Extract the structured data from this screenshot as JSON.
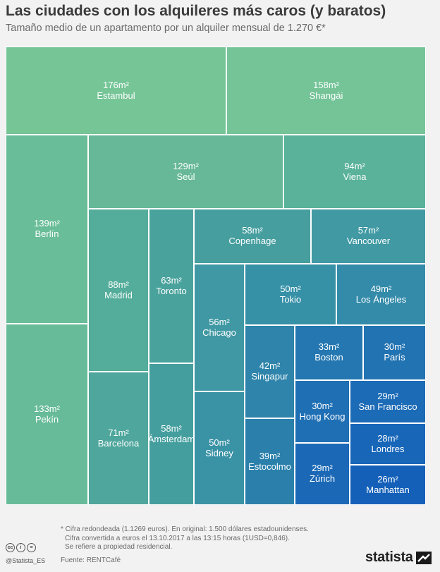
{
  "title": "Las ciudades con los alquileres más caros (y baratos)",
  "subtitle": "Tamaño medio de un apartamento por un alquiler mensual de 1.270 €*",
  "chart_data": {
    "type": "treemap",
    "title": "Las ciudades con los alquileres más caros (y baratos)",
    "subtitle": "Tamaño medio de un apartamento por un alquiler mensual de 1.270 €*",
    "unit": "m²",
    "items": [
      {
        "city": "Estambul",
        "value": 176,
        "label": "176m²",
        "color": "#76c597"
      },
      {
        "city": "Shangái",
        "value": 158,
        "label": "158m²",
        "color": "#74c498"
      },
      {
        "city": "Berlín",
        "value": 139,
        "label": "139m²",
        "color": "#69bd98"
      },
      {
        "city": "Pekín",
        "value": 133,
        "label": "133m²",
        "color": "#67bb99"
      },
      {
        "city": "Seúl",
        "value": 129,
        "label": "129m²",
        "color": "#66b898"
      },
      {
        "city": "Viena",
        "value": 94,
        "label": "94m²",
        "color": "#5ab29a"
      },
      {
        "city": "Madrid",
        "value": 88,
        "label": "88m²",
        "color": "#54ad9a"
      },
      {
        "city": "Barcelona",
        "value": 71,
        "label": "71m²",
        "color": "#4ea69c"
      },
      {
        "city": "Toronto",
        "value": 63,
        "label": "63m²",
        "color": "#4aa29c"
      },
      {
        "city": "Copenhage",
        "value": 58,
        "label": "58m²",
        "color": "#469e9f"
      },
      {
        "city": "Ámsterdam",
        "value": 58,
        "label": "58m²",
        "color": "#459e9e"
      },
      {
        "city": "Vancouver",
        "value": 57,
        "label": "57m²",
        "color": "#4099a3"
      },
      {
        "city": "Chicago",
        "value": 56,
        "label": "56m²",
        "color": "#3f98a3"
      },
      {
        "city": "Tokio",
        "value": 50,
        "label": "50m²",
        "color": "#3690a6"
      },
      {
        "city": "Sidney",
        "value": 50,
        "label": "50m²",
        "color": "#3a92a5"
      },
      {
        "city": "Los Ángeles",
        "value": 49,
        "label": "49m²",
        "color": "#338ba9"
      },
      {
        "city": "Singapur",
        "value": 42,
        "label": "42m²",
        "color": "#2e84aa"
      },
      {
        "city": "Estocolmo",
        "value": 39,
        "label": "39m²",
        "color": "#2a80ab"
      },
      {
        "city": "Boston",
        "value": 33,
        "label": "33m²",
        "color": "#2477b0"
      },
      {
        "city": "París",
        "value": 30,
        "label": "30m²",
        "color": "#2273b2"
      },
      {
        "city": "Hong Kong",
        "value": 30,
        "label": "30m²",
        "color": "#1f6fb4"
      },
      {
        "city": "San Francisco",
        "value": 29,
        "label": "29m²",
        "color": "#1c6bb6"
      },
      {
        "city": "Zúrich",
        "value": 29,
        "label": "29m²",
        "color": "#1b69b6"
      },
      {
        "city": "Londres",
        "value": 28,
        "label": "28m²",
        "color": "#1866b8"
      },
      {
        "city": "Manhattan",
        "value": 26,
        "label": "26m²",
        "color": "#1460b9"
      }
    ]
  },
  "footnotes": [
    "* Cifra redondeada (1.1269 euros). En original: 1.500 dólares estadounidenses.",
    "Cifra convertida a euros el 13.10.2017 a las 13:15 horas (1USD=0,846).",
    "Se refiere a propiedad residencial."
  ],
  "source": "Fuente: RENTCafé",
  "handle": "@Statista_ES",
  "brand": "statista"
}
